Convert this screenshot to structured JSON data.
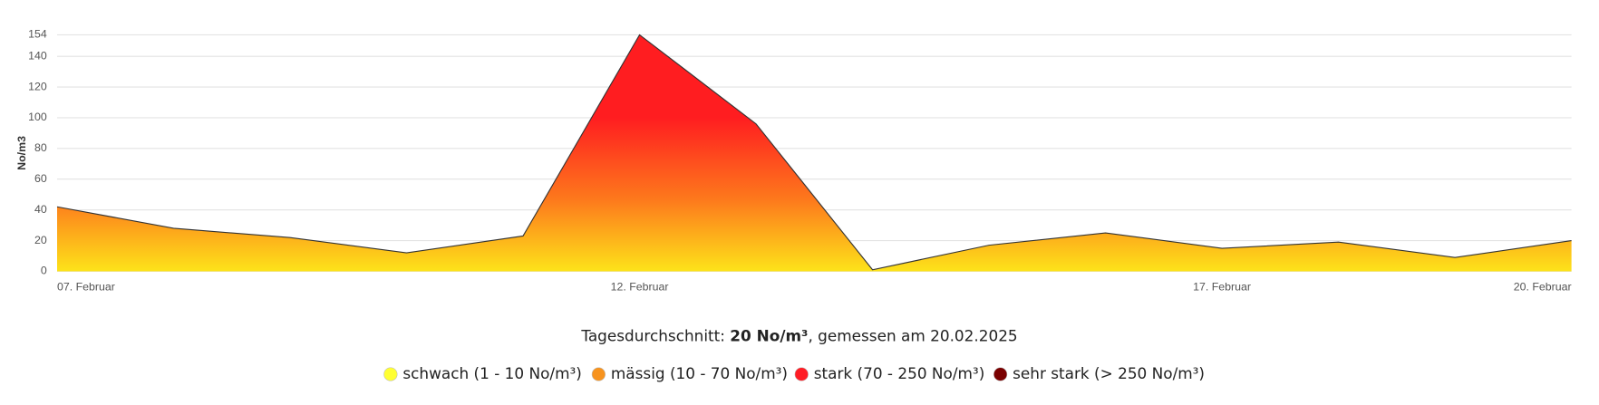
{
  "chart_data": {
    "type": "area",
    "y_label": "No/m3",
    "categories": [
      "07. Februar",
      null,
      null,
      null,
      null,
      "12. Februar",
      null,
      null,
      null,
      null,
      "17. Februar",
      null,
      null,
      "20. Februar"
    ],
    "series": [
      {
        "values": [
          42,
          28,
          22,
          12,
          23,
          154,
          96,
          1,
          17,
          25,
          15,
          19,
          9,
          20
        ],
        "color": "#333333",
        "fill_colors": [
          "#fde31a",
          "#fd7a1c",
          "#ff1d20"
        ]
      }
    ],
    "ylim": [
      0,
      154
    ],
    "yticks": [
      0,
      20,
      40,
      60,
      80,
      100,
      120,
      140,
      154
    ],
    "grid": true
  },
  "summary": {
    "prefix": "Tagesdurchschnitt: ",
    "value": "20 No/m³",
    "suffix": ", gemessen am 20.02.2025"
  },
  "legend": [
    {
      "label": "schwach (1 - 10 No/m³)",
      "color": "#ffff33"
    },
    {
      "label": "mässig (10 - 70 No/m³)",
      "color": "#f7931e"
    },
    {
      "label": "stark (70 - 250 No/m³)",
      "color": "#ff1d25"
    },
    {
      "label": "sehr stark (> 250 No/m³)",
      "color": "#7a0000"
    }
  ]
}
